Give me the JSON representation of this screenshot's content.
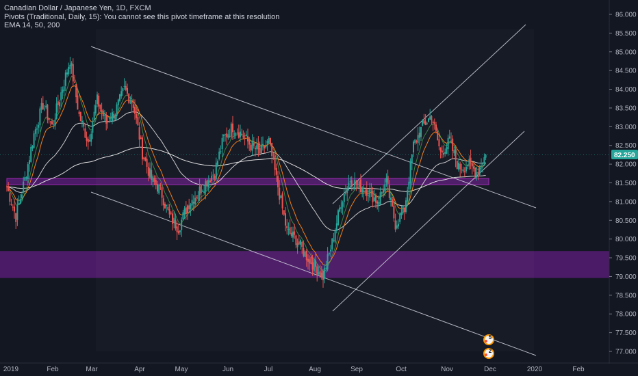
{
  "legend": {
    "line1": "Canadian Dollar / Japanese Yen, 1D, FXCM",
    "line2": "Pivots (Traditional, Daily, 15): You cannot see this pivot timeframe at this resolution",
    "line3": "EMA 14, 50, 200"
  },
  "price_tag": {
    "value": "82.250",
    "color": "#26a69a"
  },
  "markers": [
    {
      "name": "events-marker-upper",
      "label": "5"
    },
    {
      "name": "events-marker-lower",
      "label": "2"
    }
  ],
  "colors": {
    "background": "#131722",
    "up": "#26a69a",
    "down": "#ef5350",
    "ema14": "#f57f17",
    "ema50": "#4caf50",
    "ema200": "#e0e0e0",
    "zone": "#7b1fa2",
    "trendline": "#d1d4dc"
  },
  "chart_data": {
    "type": "candlestick",
    "title": "Canadian Dollar / Japanese Yen, 1D, FXCM",
    "ylim": [
      76.8,
      86.2
    ],
    "y_ticks": [
      "86.000",
      "85.500",
      "85.000",
      "84.500",
      "84.000",
      "83.500",
      "83.000",
      "82.500",
      "82.000",
      "81.500",
      "81.000",
      "80.500",
      "80.000",
      "79.500",
      "79.000",
      "78.500",
      "78.000",
      "77.500",
      "77.000"
    ],
    "x_ticks": [
      "2019",
      "Feb",
      "Mar",
      "Apr",
      "May",
      "Jun",
      "Jul",
      "Aug",
      "Sep",
      "Oct",
      "Nov",
      "Dec",
      "2020",
      "Feb"
    ],
    "last_price": 82.25,
    "anchors": [
      {
        "d": 0,
        "p": 81.4
      },
      {
        "d": 6,
        "p": 80.6
      },
      {
        "d": 12,
        "p": 81.6
      },
      {
        "d": 18,
        "p": 82.8
      },
      {
        "d": 24,
        "p": 83.6
      },
      {
        "d": 30,
        "p": 83.0
      },
      {
        "d": 36,
        "p": 83.9
      },
      {
        "d": 42,
        "p": 84.8
      },
      {
        "d": 48,
        "p": 83.3
      },
      {
        "d": 54,
        "p": 82.6
      },
      {
        "d": 60,
        "p": 83.7
      },
      {
        "d": 66,
        "p": 83.1
      },
      {
        "d": 72,
        "p": 83.4
      },
      {
        "d": 78,
        "p": 84.0
      },
      {
        "d": 84,
        "p": 83.6
      },
      {
        "d": 90,
        "p": 82.3
      },
      {
        "d": 96,
        "p": 81.6
      },
      {
        "d": 102,
        "p": 81.3
      },
      {
        "d": 108,
        "p": 80.6
      },
      {
        "d": 114,
        "p": 80.3
      },
      {
        "d": 120,
        "p": 80.9
      },
      {
        "d": 126,
        "p": 81.2
      },
      {
        "d": 132,
        "p": 81.5
      },
      {
        "d": 138,
        "p": 81.8
      },
      {
        "d": 144,
        "p": 82.7
      },
      {
        "d": 150,
        "p": 83.0
      },
      {
        "d": 156,
        "p": 82.8
      },
      {
        "d": 162,
        "p": 82.5
      },
      {
        "d": 168,
        "p": 82.3
      },
      {
        "d": 174,
        "p": 82.6
      },
      {
        "d": 180,
        "p": 81.4
      },
      {
        "d": 186,
        "p": 80.2
      },
      {
        "d": 192,
        "p": 80.0
      },
      {
        "d": 198,
        "p": 79.6
      },
      {
        "d": 204,
        "p": 79.3
      },
      {
        "d": 210,
        "p": 79.0
      },
      {
        "d": 216,
        "p": 79.9
      },
      {
        "d": 222,
        "p": 81.0
      },
      {
        "d": 228,
        "p": 81.6
      },
      {
        "d": 234,
        "p": 81.4
      },
      {
        "d": 240,
        "p": 81.3
      },
      {
        "d": 246,
        "p": 81.0
      },
      {
        "d": 252,
        "p": 81.5
      },
      {
        "d": 258,
        "p": 80.4
      },
      {
        "d": 264,
        "p": 80.8
      },
      {
        "d": 270,
        "p": 82.5
      },
      {
        "d": 276,
        "p": 83.0
      },
      {
        "d": 282,
        "p": 83.3
      },
      {
        "d": 288,
        "p": 82.3
      },
      {
        "d": 294,
        "p": 82.6
      },
      {
        "d": 300,
        "p": 81.9
      },
      {
        "d": 306,
        "p": 82.0
      },
      {
        "d": 312,
        "p": 81.8
      },
      {
        "d": 318,
        "p": 82.25
      }
    ]
  }
}
